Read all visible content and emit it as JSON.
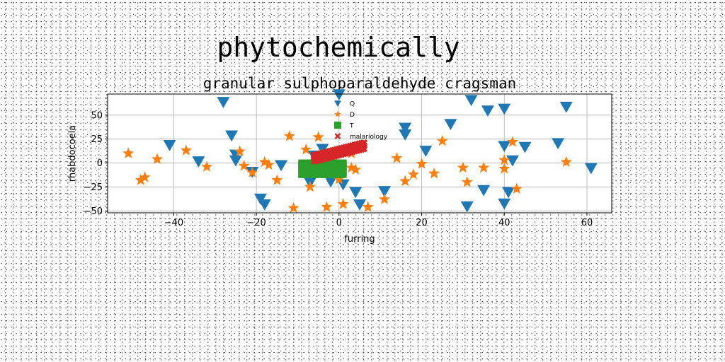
{
  "figure": {
    "suptitle": "phytochemically"
  },
  "chart_data": {
    "type": "scatter",
    "title": "granular sulphoparaldehyde cragsman",
    "xlabel": "furring",
    "ylabel": "rhabdocoela",
    "xlim": [
      -56,
      66
    ],
    "ylim": [
      -52,
      72
    ],
    "xticks": [
      -40,
      -20,
      0,
      20,
      40,
      60
    ],
    "yticks": [
      -50,
      -25,
      0,
      25,
      50
    ],
    "grid": true,
    "legend_position": "top-center",
    "series": [
      {
        "name": "Q",
        "marker": "triangle-down",
        "color": "#1f77b4",
        "points": [
          [
            -41,
            19
          ],
          [
            -34,
            2
          ],
          [
            -28,
            64
          ],
          [
            -26,
            29
          ],
          [
            -25,
            9
          ],
          [
            -25,
            3
          ],
          [
            -21,
            -9
          ],
          [
            -19,
            -37
          ],
          [
            -18,
            -43
          ],
          [
            -14,
            -2
          ],
          [
            -7,
            -20
          ],
          [
            -6,
            8
          ],
          [
            -5,
            5
          ],
          [
            -4,
            15
          ],
          [
            -2,
            -19
          ],
          [
            0,
            72
          ],
          [
            1,
            -22
          ],
          [
            4,
            -30
          ],
          [
            5,
            -43
          ],
          [
            11,
            -29
          ],
          [
            16,
            37
          ],
          [
            16,
            30
          ],
          [
            21,
            13
          ],
          [
            27,
            41
          ],
          [
            31,
            -45
          ],
          [
            32,
            66
          ],
          [
            35,
            -28
          ],
          [
            36,
            55
          ],
          [
            40,
            57
          ],
          [
            40,
            18
          ],
          [
            40,
            -42
          ],
          [
            41,
            -30
          ],
          [
            42,
            3
          ],
          [
            45,
            17
          ],
          [
            53,
            21
          ],
          [
            55,
            59
          ],
          [
            61,
            -5
          ]
        ]
      },
      {
        "name": "D",
        "marker": "star",
        "color": "#ff7f0e",
        "points": [
          [
            -51,
            10
          ],
          [
            -48,
            -18
          ],
          [
            -47,
            -15
          ],
          [
            -44,
            4
          ],
          [
            -37,
            13
          ],
          [
            -32,
            -4
          ],
          [
            -24,
            12
          ],
          [
            -23,
            -3
          ],
          [
            -21,
            -10
          ],
          [
            -18,
            1
          ],
          [
            -17,
            -2
          ],
          [
            -15,
            -18
          ],
          [
            -12,
            28
          ],
          [
            -11,
            -47
          ],
          [
            -8,
            14
          ],
          [
            -7,
            -25
          ],
          [
            -5,
            27
          ],
          [
            -3,
            -46
          ],
          [
            0,
            -17
          ],
          [
            1,
            -43
          ],
          [
            3,
            -5
          ],
          [
            3,
            10
          ],
          [
            4,
            -7
          ],
          [
            7,
            -46
          ],
          [
            11,
            -38
          ],
          [
            14,
            5
          ],
          [
            16,
            -19
          ],
          [
            18,
            -12
          ],
          [
            20,
            -1
          ],
          [
            23,
            -11
          ],
          [
            25,
            23
          ],
          [
            30,
            -5
          ],
          [
            31,
            -20
          ],
          [
            35,
            -5
          ],
          [
            40,
            3
          ],
          [
            40,
            -6
          ],
          [
            42,
            22
          ],
          [
            43,
            -27
          ],
          [
            55,
            1
          ]
        ]
      },
      {
        "name": "T",
        "marker": "square",
        "color": "#2ca02c",
        "region": {
          "x": [
            -9,
            1
          ],
          "y": [
            -12,
            0
          ]
        }
      },
      {
        "name": "malariology",
        "marker": "x",
        "color": "#d62728",
        "band": {
          "x": [
            -6,
            6
          ],
          "y_center": [
            5,
            18
          ],
          "thickness": 6
        }
      }
    ]
  }
}
